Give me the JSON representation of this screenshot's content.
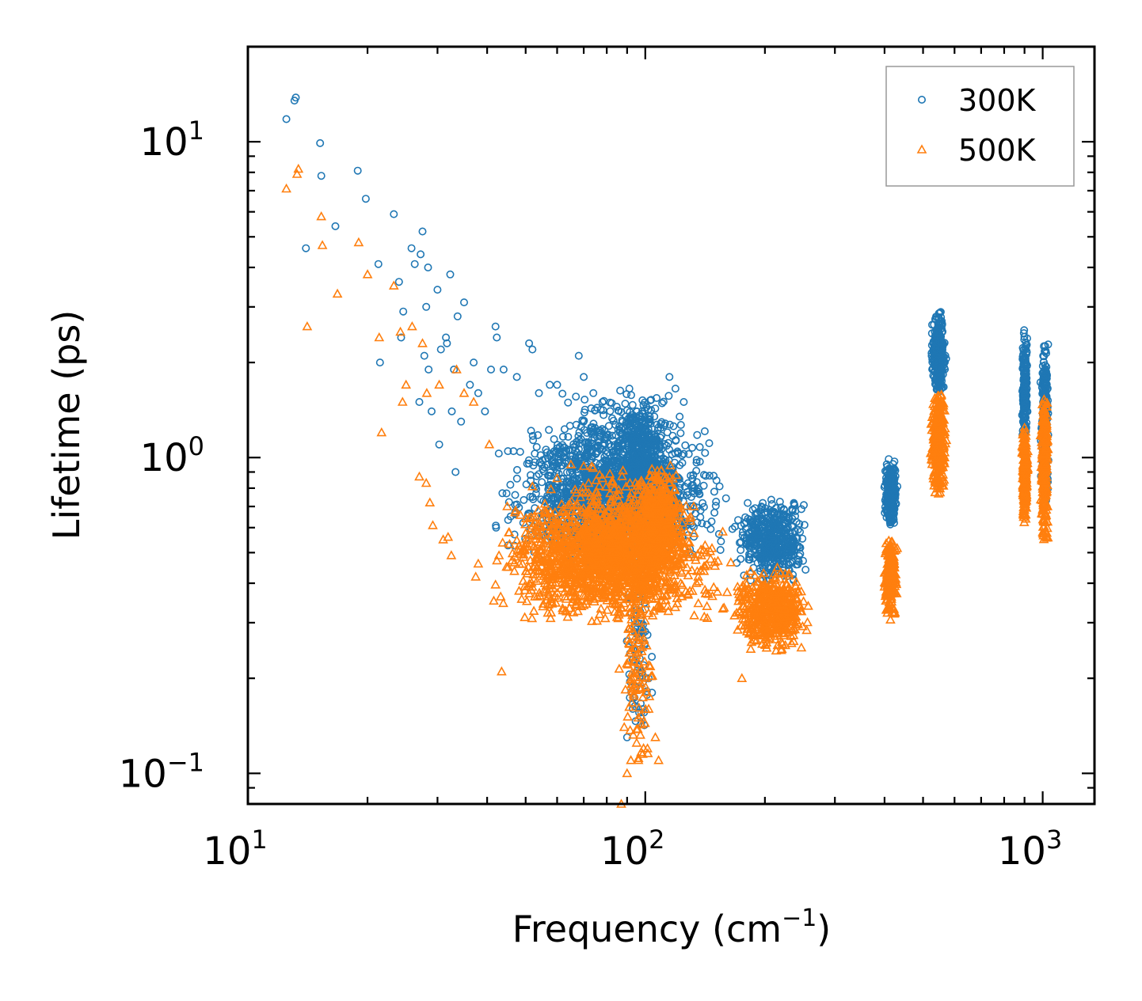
{
  "chart_data": {
    "type": "scatter",
    "xscale": "log",
    "yscale": "log",
    "xlim": [
      10,
      1350
    ],
    "ylim": [
      0.08,
      20
    ],
    "xlabel": "Frequency (cm",
    "xlabel_sup": "−1",
    "xlabel_end": ")",
    "ylabel": "Lifetime (ps)",
    "xticks": [
      {
        "value": 10,
        "base": "10",
        "exp": "1"
      },
      {
        "value": 100,
        "base": "10",
        "exp": "2"
      },
      {
        "value": 1000,
        "base": "10",
        "exp": "3"
      }
    ],
    "yticks": [
      {
        "value": 0.1,
        "base": "10",
        "exp": "−1"
      },
      {
        "value": 1,
        "base": "10",
        "exp": "0"
      },
      {
        "value": 10,
        "base": "10",
        "exp": "1"
      }
    ],
    "legend_position": "top-right",
    "series": [
      {
        "name": "300K",
        "marker": "circle",
        "color": "#1f77b4",
        "points": [
          [
            12.5,
            11.8
          ],
          [
            13.1,
            13.5
          ],
          [
            13.2,
            13.8
          ],
          [
            14.0,
            4.6
          ],
          [
            15.2,
            9.9
          ],
          [
            15.3,
            7.8
          ],
          [
            16.6,
            5.4
          ],
          [
            18.9,
            8.1
          ],
          [
            19.8,
            6.6
          ],
          [
            21.3,
            4.1
          ],
          [
            21.5,
            2.0
          ],
          [
            23.3,
            5.9
          ],
          [
            24.0,
            3.6
          ],
          [
            24.3,
            2.4
          ],
          [
            24.6,
            2.9
          ],
          [
            25.8,
            4.6
          ],
          [
            26.3,
            4.1
          ],
          [
            27.0,
            1.5
          ],
          [
            27.2,
            4.4
          ],
          [
            27.5,
            5.2
          ],
          [
            27.8,
            2.1
          ],
          [
            28.1,
            3.0
          ],
          [
            28.4,
            4.0
          ],
          [
            28.5,
            1.9
          ],
          [
            29.0,
            1.4
          ],
          [
            30.0,
            3.4
          ],
          [
            30.3,
            1.1
          ],
          [
            30.6,
            2.2
          ],
          [
            31.5,
            2.4
          ],
          [
            31.7,
            2.3
          ],
          [
            32.3,
            3.8
          ],
          [
            32.6,
            1.4
          ],
          [
            33.0,
            1.9
          ],
          [
            33.3,
            0.9
          ],
          [
            33.7,
            2.8
          ],
          [
            34.4,
            1.3
          ],
          [
            35.0,
            3.1
          ],
          [
            36.2,
            1.7
          ],
          [
            37.0,
            2.0
          ],
          [
            38.0,
            1.6
          ],
          [
            39.5,
            1.4
          ],
          [
            40.9,
            1.9
          ],
          [
            42.0,
            2.6
          ],
          [
            42.3,
            2.4
          ],
          [
            44.0,
            1.9
          ],
          [
            47.5,
            1.8
          ],
          [
            51.0,
            2.3
          ],
          [
            52.0,
            2.2
          ],
          [
            54.0,
            1.6
          ],
          [
            57.5,
            1.7
          ],
          [
            60.0,
            1.7
          ],
          [
            68.0,
            2.1
          ],
          [
            70.0,
            1.8
          ],
          [
            74.0,
            1.6
          ],
          [
            78.0,
            1.5
          ],
          [
            90.0,
            0.13
          ],
          [
            93.0,
            0.16
          ],
          [
            96.0,
            0.24
          ],
          [
            99.0,
            0.22
          ],
          [
            102.0,
            0.2
          ],
          [
            104.0,
            0.18
          ],
          [
            115.0,
            1.8
          ],
          [
            125.0,
            1.5
          ]
        ],
        "clusters": [
          {
            "x": [
              38,
              175
            ],
            "y": [
              0.45,
              1.3
            ],
            "n": 1300
          },
          {
            "x": [
              50,
              150
            ],
            "y": [
              0.5,
              1.7
            ],
            "n": 400
          },
          {
            "x": [
              80,
              120
            ],
            "y": [
              0.6,
              1.6
            ],
            "n": 400
          },
          {
            "x": [
              88,
              105
            ],
            "y": [
              0.12,
              0.6
            ],
            "n": 90
          },
          {
            "x": [
              160,
              270
            ],
            "y": [
              0.4,
              0.75
            ],
            "n": 500
          },
          {
            "x": [
              395,
              435
            ],
            "y": [
              0.6,
              1.0
            ],
            "n": 220
          },
          {
            "x": [
              520,
              575
            ],
            "y": [
              1.6,
              2.9
            ],
            "n": 320
          },
          {
            "x": [
              885,
              920
            ],
            "y": [
              1.1,
              2.6
            ],
            "n": 200
          },
          {
            "x": [
              985,
              1040
            ],
            "y": [
              0.7,
              2.4
            ],
            "n": 260
          }
        ]
      },
      {
        "name": "500K",
        "marker": "triangle",
        "color": "#ff7f0e",
        "points": [
          [
            12.5,
            7.1
          ],
          [
            13.3,
            7.9
          ],
          [
            13.4,
            8.2
          ],
          [
            14.1,
            2.6
          ],
          [
            15.3,
            5.8
          ],
          [
            15.4,
            4.7
          ],
          [
            16.8,
            3.3
          ],
          [
            19.0,
            4.8
          ],
          [
            20.0,
            3.8
          ],
          [
            21.4,
            2.4
          ],
          [
            21.7,
            1.2
          ],
          [
            23.3,
            3.5
          ],
          [
            24.2,
            2.5
          ],
          [
            24.5,
            1.5
          ],
          [
            25.0,
            1.7
          ],
          [
            25.9,
            2.6
          ],
          [
            27.0,
            0.87
          ],
          [
            27.5,
            2.3
          ],
          [
            28.1,
            0.83
          ],
          [
            28.2,
            1.6
          ],
          [
            28.7,
            0.72
          ],
          [
            29.2,
            0.61
          ],
          [
            30.3,
            1.7
          ],
          [
            31.0,
            0.55
          ],
          [
            31.9,
            0.56
          ],
          [
            32.5,
            0.49
          ],
          [
            33.5,
            1.9
          ],
          [
            35.0,
            1.6
          ],
          [
            37.0,
            1.5
          ],
          [
            40.5,
            1.1
          ],
          [
            43.5,
            0.21
          ],
          [
            47.0,
            0.67
          ],
          [
            52.0,
            0.81
          ],
          [
            60.0,
            0.86
          ],
          [
            65.0,
            0.95
          ],
          [
            70.0,
            0.94
          ],
          [
            72.0,
            0.83
          ],
          [
            78.0,
            0.86
          ],
          [
            87.0,
            0.08
          ],
          [
            88.5,
            0.14
          ],
          [
            90.0,
            0.1
          ],
          [
            92.0,
            0.11
          ],
          [
            96.0,
            0.15
          ],
          [
            99.0,
            0.12
          ],
          [
            102.0,
            0.16
          ],
          [
            106.0,
            0.13
          ],
          [
            108.0,
            0.11
          ],
          [
            175.0,
            0.2
          ]
        ],
        "clusters": [
          {
            "x": [
              36,
              175
            ],
            "y": [
              0.3,
              0.75
            ],
            "n": 1300
          },
          {
            "x": [
              50,
              150
            ],
            "y": [
              0.33,
              0.95
            ],
            "n": 400
          },
          {
            "x": [
              90,
              130
            ],
            "y": [
              0.4,
              0.95
            ],
            "n": 400
          },
          {
            "x": [
              85,
              108
            ],
            "y": [
              0.1,
              0.45
            ],
            "n": 100
          },
          {
            "x": [
              160,
              270
            ],
            "y": [
              0.24,
              0.45
            ],
            "n": 500
          },
          {
            "x": [
              395,
              435
            ],
            "y": [
              0.3,
              0.6
            ],
            "n": 220
          },
          {
            "x": [
              520,
              575
            ],
            "y": [
              0.75,
              1.65
            ],
            "n": 320
          },
          {
            "x": [
              885,
              920
            ],
            "y": [
              0.6,
              1.3
            ],
            "n": 200
          },
          {
            "x": [
              985,
              1040
            ],
            "y": [
              0.5,
              1.6
            ],
            "n": 260
          }
        ]
      }
    ]
  }
}
